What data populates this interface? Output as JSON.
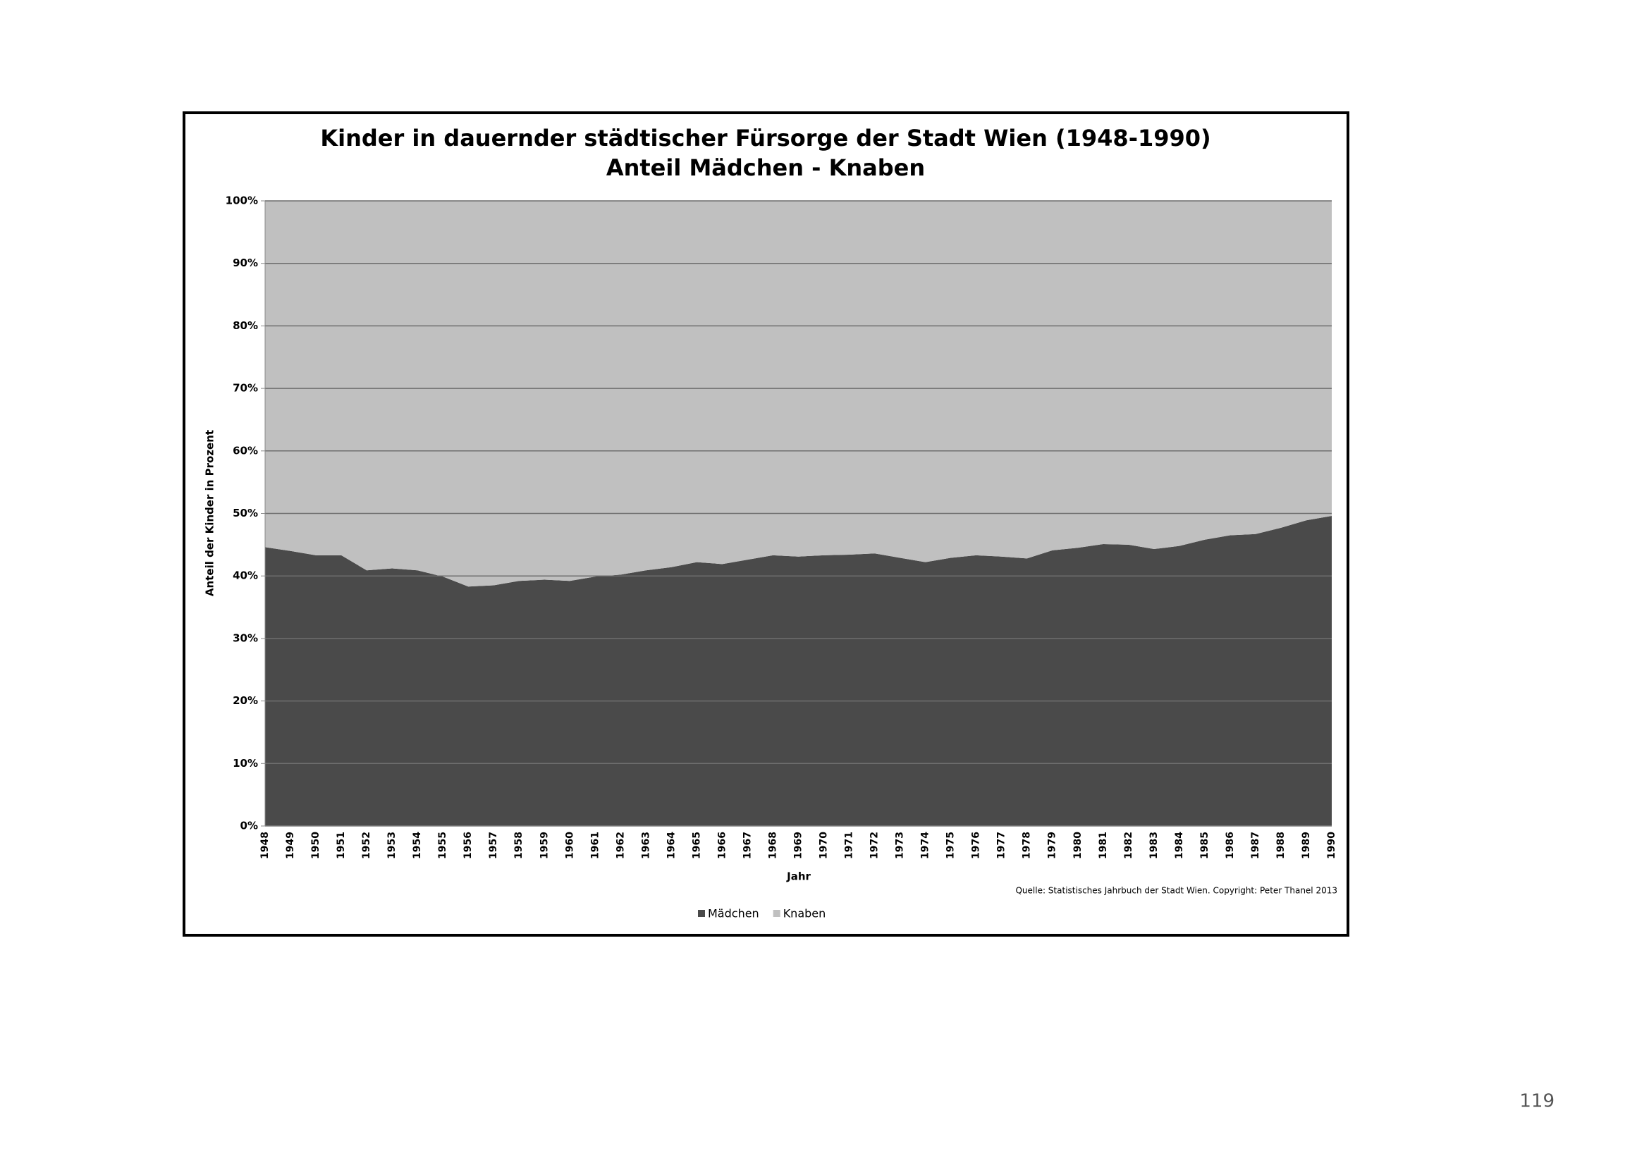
{
  "chart_data": {
    "type": "stacked_area",
    "title": "Kinder in dauernder städtischer Fürsorge der Stadt Wien (1948-1990)",
    "subtitle": "Anteil Mädchen - Knaben",
    "y_label": "Anteil der Kinder in Prozent",
    "x_label": "Jahr",
    "source": "Quelle: Statistisches Jahrbuch der Stadt Wien. Copyright: Peter Thanel 2013",
    "categories": [
      "1948",
      "1949",
      "1950",
      "1951",
      "1952",
      "1953",
      "1954",
      "1955",
      "1956",
      "1957",
      "1958",
      "1959",
      "1960",
      "1961",
      "1962",
      "1963",
      "1964",
      "1965",
      "1966",
      "1967",
      "1968",
      "1969",
      "1970",
      "1971",
      "1972",
      "1973",
      "1974",
      "1975",
      "1976",
      "1977",
      "1978",
      "1979",
      "1980",
      "1981",
      "1982",
      "1983",
      "1984",
      "1985",
      "1986",
      "1987",
      "1988",
      "1989",
      "1990"
    ],
    "series": [
      {
        "name": "Mädchen",
        "color": "#4a4a4a",
        "values": [
          44.6,
          44.0,
          43.3,
          43.3,
          40.9,
          41.2,
          40.9,
          39.9,
          38.3,
          38.5,
          39.2,
          39.4,
          39.2,
          39.9,
          40.2,
          40.9,
          41.4,
          42.2,
          41.9,
          42.6,
          43.3,
          43.1,
          43.3,
          43.4,
          43.6,
          42.9,
          42.2,
          42.9,
          43.3,
          43.1,
          42.8,
          44.1,
          44.5,
          45.1,
          45.0,
          44.3,
          44.8,
          45.8,
          46.5,
          46.7,
          47.7,
          48.9,
          49.6
        ]
      },
      {
        "name": "Knaben",
        "color": "#c0c0c0",
        "values": [
          55.4,
          56.0,
          56.7,
          56.7,
          59.1,
          58.8,
          59.1,
          60.1,
          61.7,
          61.5,
          60.8,
          60.6,
          60.8,
          60.1,
          59.8,
          59.1,
          58.6,
          57.8,
          58.1,
          57.4,
          56.7,
          56.9,
          56.7,
          56.6,
          56.4,
          57.1,
          57.8,
          57.1,
          56.7,
          56.9,
          57.2,
          55.9,
          55.5,
          54.9,
          55.0,
          55.7,
          55.2,
          54.2,
          53.5,
          53.3,
          52.3,
          51.1,
          50.4
        ]
      }
    ],
    "ylim": [
      0,
      100
    ],
    "yticks": [
      {
        "value": 0,
        "label": "0%"
      },
      {
        "value": 10,
        "label": "10%"
      },
      {
        "value": 20,
        "label": "20%"
      },
      {
        "value": 30,
        "label": "30%"
      },
      {
        "value": 40,
        "label": "40%"
      },
      {
        "value": 50,
        "label": "50%"
      },
      {
        "value": 60,
        "label": "60%"
      },
      {
        "value": 70,
        "label": "70%"
      },
      {
        "value": 80,
        "label": "80%"
      },
      {
        "value": 90,
        "label": "90%"
      },
      {
        "value": 100,
        "label": "100%"
      }
    ],
    "grid": true,
    "legend": "bottom"
  },
  "page_number": "119"
}
